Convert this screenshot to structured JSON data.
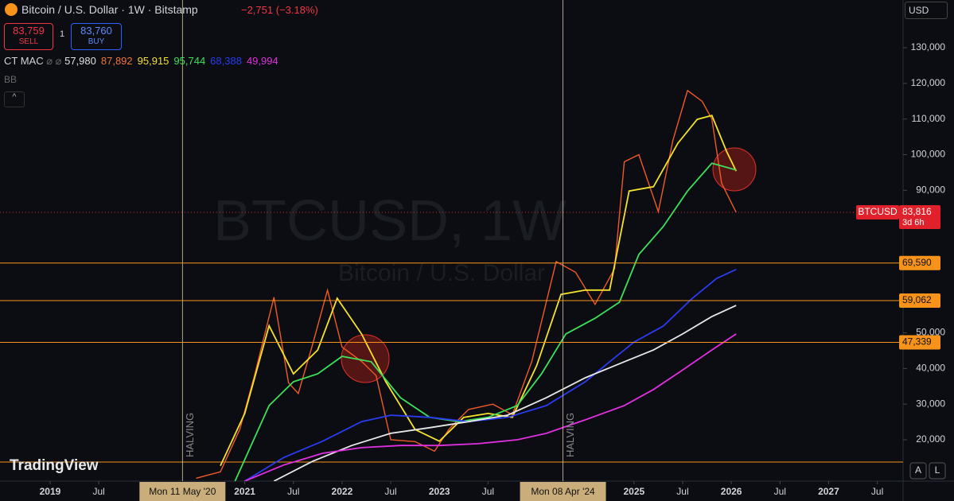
{
  "ui": {
    "symbol": "Bitcoin / U.S. Dollar · 1W · Bitstamp",
    "change": "−2,751 (−3.18%)",
    "sell_price": "83,759",
    "sell": "SELL",
    "spread": "1",
    "buy_price": "83,760",
    "buy": "BUY",
    "indicator": "CT MAC",
    "indicator_values": [
      "57,980",
      "87,892",
      "95,915",
      "95,744",
      "68,388",
      "49,994"
    ],
    "indicator_colors": [
      "#e0e0e0",
      "#f0743a",
      "#f5e12e",
      "#3ee05a",
      "#2a3cf0",
      "#e030e0"
    ],
    "bb": "BB",
    "currency": "USD",
    "watermark": "BTCUSD, 1W",
    "watermark_sub": "Bitcoin / U.S. Dollar",
    "brand": "TradingView",
    "buttons": [
      "A",
      "L"
    ]
  },
  "chart_data": {
    "type": "line",
    "xlim": [
      2018.485,
      2027.765
    ],
    "xticks": [
      2019,
      {
        "value": 2019.5,
        "label": "Jul"
      },
      2021,
      {
        "value": 2021.5,
        "label": "Jul"
      },
      2022,
      {
        "value": 2022.5,
        "label": "Jul"
      },
      2023,
      {
        "value": 2023.5,
        "label": "Jul"
      },
      2025,
      {
        "value": 2025.5,
        "label": "Jul"
      },
      2026,
      {
        "value": 2026.5,
        "label": "Jul"
      },
      2027,
      {
        "value": 2027.5,
        "label": "Jul"
      }
    ],
    "ylim": [
      8400,
      143400
    ],
    "yticks": [
      {
        "value": 130000,
        "label": "130,000"
      },
      {
        "value": 120000,
        "label": "120,000"
      },
      {
        "value": 110000,
        "label": "110,000"
      },
      {
        "value": 100000,
        "label": "100,000"
      },
      {
        "value": 90000,
        "label": "90,000"
      },
      {
        "value": 50000,
        "label": "50,000"
      },
      {
        "value": 40000,
        "label": "40,000"
      },
      {
        "value": 30000,
        "label": "30,000"
      },
      {
        "value": 20000,
        "label": "20,000"
      }
    ],
    "series": [
      {
        "name": "BTCUSD",
        "color": "#f05a28",
        "x": [
          2020.5,
          2020.75,
          2020.95,
          2021.1,
          2021.3,
          2021.45,
          2021.55,
          2021.7,
          2021.85,
          2022.0,
          2022.2,
          2022.35,
          2022.5,
          2022.75,
          2022.95,
          2023.1,
          2023.3,
          2023.55,
          2023.75,
          2023.95,
          2024.2,
          2024.4,
          2024.6,
          2024.8,
          2024.9,
          2025.05,
          2025.25,
          2025.4,
          2025.55,
          2025.7,
          2025.8,
          2025.9,
          2026.05
        ],
        "values": [
          9200,
          11000,
          23000,
          38000,
          60000,
          36000,
          33000,
          47000,
          62000,
          46000,
          42000,
          38000,
          20000,
          19500,
          16800,
          23000,
          28500,
          30000,
          27000,
          42000,
          70000,
          67000,
          58000,
          68000,
          98000,
          100000,
          84000,
          104000,
          118000,
          115000,
          110000,
          92000,
          83816
        ]
      },
      {
        "color": "#f5e12e",
        "x": [
          2020.75,
          2021.0,
          2021.25,
          2021.5,
          2021.75,
          2021.95,
          2022.2,
          2022.45,
          2022.75,
          2023.0,
          2023.25,
          2023.5,
          2023.75,
          2024.0,
          2024.25,
          2024.5,
          2024.75,
          2024.95,
          2025.2,
          2025.45,
          2025.65,
          2025.8,
          2025.95,
          2026.05
        ],
        "values": [
          12700,
          27400,
          52000,
          38500,
          45200,
          59700,
          49700,
          36300,
          22900,
          19600,
          26300,
          27400,
          26300,
          40800,
          60800,
          62000,
          62000,
          89800,
          91000,
          103200,
          109900,
          111000,
          101000,
          95400
        ]
      },
      {
        "color": "#3ee05a",
        "x": [
          2020.9,
          2021.25,
          2021.5,
          2021.75,
          2022.0,
          2022.3,
          2022.6,
          2022.9,
          2023.2,
          2023.5,
          2023.8,
          2024.05,
          2024.3,
          2024.6,
          2024.85,
          2025.05,
          2025.3,
          2025.55,
          2025.8,
          2026.05
        ],
        "values": [
          8400,
          29600,
          36300,
          38500,
          43400,
          41900,
          31800,
          26300,
          25100,
          26300,
          29600,
          38500,
          49700,
          54100,
          58600,
          72000,
          79800,
          89800,
          97600,
          95700
        ]
      },
      {
        "color": "#2a3cf0",
        "x": [
          2021.0,
          2021.4,
          2021.8,
          2022.2,
          2022.5,
          2022.9,
          2023.3,
          2023.7,
          2024.1,
          2024.5,
          2024.75,
          2025.0,
          2025.3,
          2025.6,
          2025.85,
          2026.05
        ],
        "values": [
          8400,
          15000,
          19600,
          25100,
          26900,
          26300,
          25100,
          26300,
          29600,
          36300,
          41900,
          47400,
          51900,
          59700,
          65300,
          67800
        ]
      },
      {
        "color": "#e8e8e8",
        "x": [
          2021.3,
          2021.7,
          2022.1,
          2022.5,
          2022.9,
          2023.3,
          2023.7,
          2024.1,
          2024.5,
          2024.9,
          2025.2,
          2025.5,
          2025.8,
          2026.05
        ],
        "values": [
          8400,
          14000,
          18400,
          21800,
          23400,
          25100,
          26900,
          31800,
          37400,
          41900,
          45200,
          49700,
          54600,
          57700
        ]
      },
      {
        "color": "#e030e0",
        "x": [
          2021.0,
          2021.4,
          2021.8,
          2022.2,
          2022.6,
          2023.0,
          2023.4,
          2023.8,
          2024.1,
          2024.5,
          2024.9,
          2025.2,
          2025.5,
          2025.8,
          2026.05
        ],
        "values": [
          8400,
          12900,
          16200,
          17800,
          18400,
          18400,
          18900,
          20000,
          21800,
          25600,
          29600,
          34100,
          39600,
          45200,
          49700
        ]
      }
    ],
    "levels": [
      {
        "value": 69590,
        "label": "69,590"
      },
      {
        "value": 59062,
        "label": "59,062"
      },
      {
        "value": 47339,
        "label": "47,339"
      }
    ],
    "level_color": "#f7931a",
    "last_price": {
      "value": 83816,
      "label": "83,816",
      "name": "BTCUSD",
      "countdown": "3d 6h",
      "color": "#e0202a"
    },
    "events": [
      {
        "x": 2020.36,
        "label": "HALVING",
        "date": "Mon 11 May '20"
      },
      {
        "x": 2024.27,
        "label": "HALVING",
        "date": "Mon 08 Apr '24"
      }
    ]
  }
}
